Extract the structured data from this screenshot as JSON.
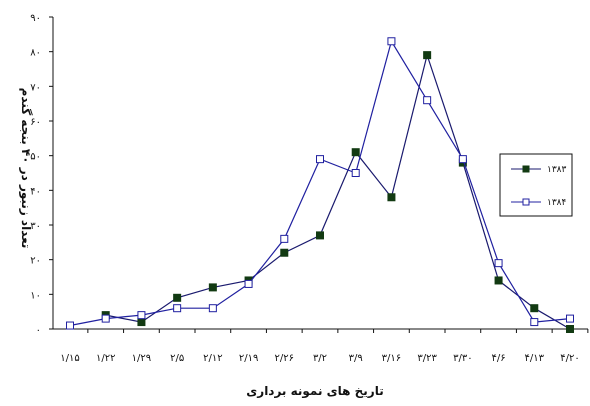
{
  "chart_data": {
    "type": "line",
    "title": "",
    "xlabel": "تاریخ های نمونه برداری",
    "ylabel": "تعداد زنبور در ۴۰ بنجه گندم",
    "x_tick_labels": [
      "1/15",
      "1/22",
      "1/29",
      "2/5",
      "2/12",
      "2/19",
      "2/26",
      "3/2",
      "3/9",
      "3/16",
      "3/23",
      "3/30",
      "4/6",
      "4/13",
      "4/20"
    ],
    "ylim": [
      0,
      90
    ],
    "y_ticks": [
      0,
      10,
      20,
      30,
      40,
      50,
      60,
      70,
      80,
      90
    ],
    "y_tick_labels": [
      "۰",
      "۱۰",
      "۲۰",
      "۳۰",
      "۴۰",
      "۵۰",
      "۶۰",
      "۷۰",
      "۸۰",
      "۹۰"
    ],
    "x_tick_text": [
      "۱/۱۵",
      "۱/۲۲",
      "۱/۲۹",
      "۲/۵",
      "۲/۱۲",
      "۲/۱۹",
      "۲/۲۶",
      "۳/۲",
      "۳/۹",
      "۳/۱۶",
      "۳/۲۳",
      "۳/۳۰",
      "۴/۶",
      "۴/۱۳",
      "۴/۲۰"
    ],
    "grid": false,
    "legend_position": "right",
    "series": [
      {
        "name": "۱۳۸۳",
        "marker": "filled-square",
        "color": "#123a12",
        "line_color": "#1a1a6e",
        "x_index": [
          1,
          2,
          3,
          4,
          5,
          6,
          7,
          8,
          9,
          10,
          11,
          12,
          13,
          14
        ],
        "values": [
          4,
          2,
          9,
          12,
          14,
          22,
          27,
          51,
          38,
          79,
          48,
          14,
          6,
          0
        ]
      },
      {
        "name": "۱۳۸۴",
        "marker": "hollow-square",
        "color": "#2020a0",
        "line_color": "#2020a0",
        "x_index": [
          0,
          1,
          2,
          3,
          4,
          5,
          6,
          7,
          8,
          9,
          10,
          11,
          12,
          13,
          14
        ],
        "values": [
          1,
          3,
          4,
          6,
          6,
          13,
          26,
          49,
          45,
          83,
          66,
          49,
          19,
          2,
          3
        ]
      }
    ]
  }
}
